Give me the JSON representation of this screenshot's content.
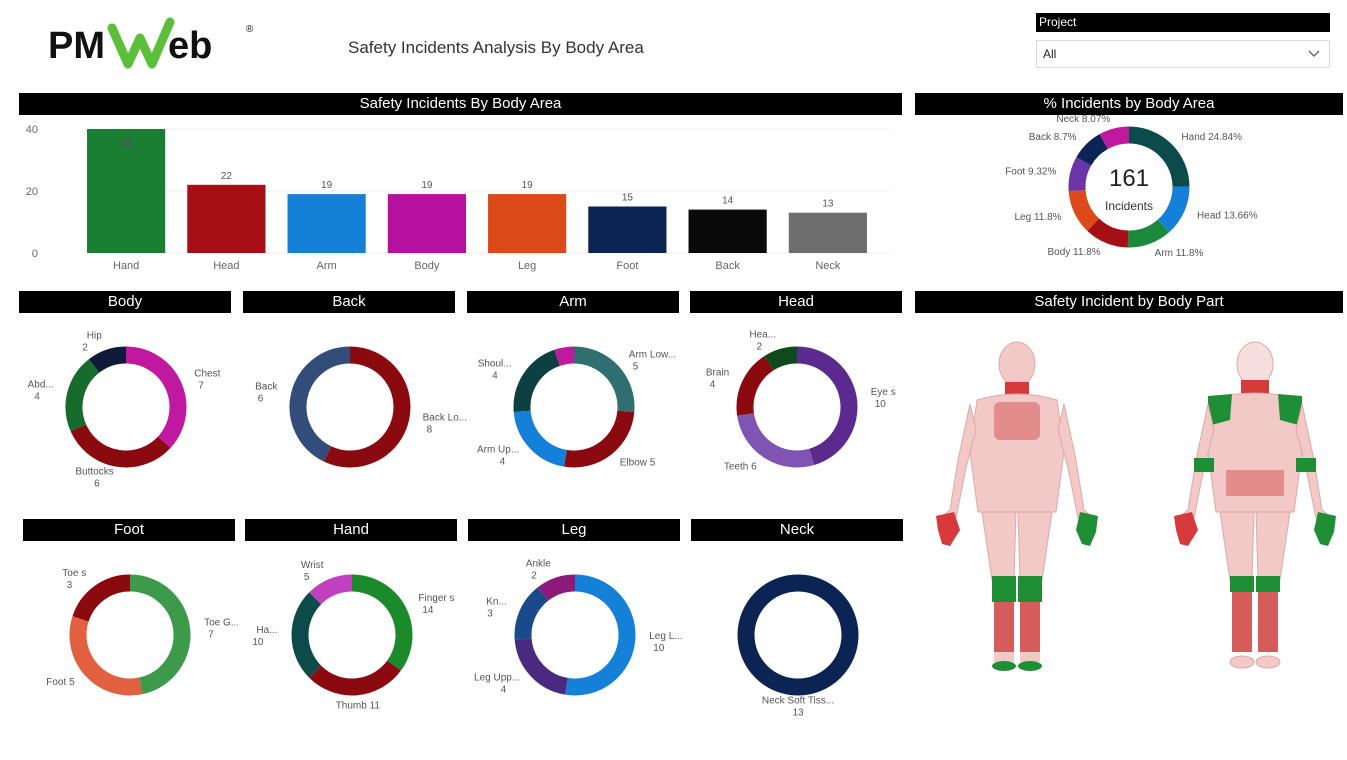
{
  "header": {
    "title": "Safety Incidents Analysis By Body Area",
    "logo": {
      "brand": "PMWeb",
      "mark": "®"
    }
  },
  "project_filter": {
    "label": "Project",
    "value": "All"
  },
  "panels": {
    "bar_title": "Safety Incidents By Body Area",
    "pct_title": "% Incidents by Body Area",
    "bodypart_title": "Safety Incident by Body Part"
  },
  "colors": {
    "accent_green": "#1a7f32",
    "dark_red": "#8b0000"
  },
  "chart_data": [
    {
      "id": "bar",
      "type": "bar",
      "title": "Safety Incidents By Body Area",
      "categories": [
        "Hand",
        "Head",
        "Arm",
        "Body",
        "Leg",
        "Foot",
        "Back",
        "Neck"
      ],
      "values": [
        40,
        22,
        19,
        19,
        19,
        15,
        14,
        13
      ],
      "colors": [
        "#1a7f32",
        "#a50f15",
        "#1580d8",
        "#b5109e",
        "#dd4a1a",
        "#0c2454",
        "#0a0a0a",
        "#6e6e6e"
      ],
      "yticks": [
        "0",
        "20",
        "40"
      ],
      "ylim": [
        0,
        40
      ],
      "grid": true
    },
    {
      "id": "pct",
      "type": "pie",
      "title": "% Incidents by Body Area",
      "center_value": "161",
      "center_label": "Incidents",
      "slices": [
        {
          "label": "Hand 24.84%",
          "value": 24.84,
          "color": "#0d4a4a"
        },
        {
          "label": "Head 13.66%",
          "value": 13.66,
          "color": "#1580d8"
        },
        {
          "label": "Arm 11.8%",
          "value": 11.8,
          "color": "#1a8a3a"
        },
        {
          "label": "Body 11.8%",
          "value": 11.8,
          "color": "#a50f15"
        },
        {
          "label": "Leg 11.8%",
          "value": 11.8,
          "color": "#dd4a1a"
        },
        {
          "label": "Foot 9.32%",
          "value": 9.32,
          "color": "#6b35a8"
        },
        {
          "label": "Back 8.7%",
          "value": 8.7,
          "color": "#0c2454"
        },
        {
          "label": "Neck 8.07%",
          "value": 8.07,
          "color": "#c0189e"
        }
      ]
    },
    {
      "id": "body",
      "type": "pie",
      "title": "Body",
      "slices": [
        {
          "name": "Chest",
          "count": "7",
          "value": 7,
          "color": "#c0189e"
        },
        {
          "name": "Buttocks",
          "count": "6",
          "value": 6,
          "color": "#8b0a10"
        },
        {
          "name": "Abd...",
          "count": "4",
          "value": 4,
          "color": "#176b2c"
        },
        {
          "name": "Hip",
          "count": "2",
          "value": 2,
          "color": "#0f1a3a"
        }
      ]
    },
    {
      "id": "back",
      "type": "pie",
      "title": "Back",
      "slices": [
        {
          "name": "Back Lo...",
          "count": "8",
          "value": 8,
          "color": "#8b0a10"
        },
        {
          "name": "Back",
          "count": "6",
          "value": 6,
          "color": "#324d7a"
        }
      ]
    },
    {
      "id": "arm",
      "type": "pie",
      "title": "Arm",
      "slices": [
        {
          "name": "Arm Low...",
          "count": "5",
          "value": 5,
          "color": "#2f6f6f"
        },
        {
          "name": "Elbow",
          "count": "5",
          "value": 5,
          "color": "#8b0a10"
        },
        {
          "name": "Arm Up...",
          "count": "4",
          "value": 4,
          "color": "#1580d8"
        },
        {
          "name": "Shoul...",
          "count": "4",
          "value": 4,
          "color": "#0d4040"
        },
        {
          "name": "",
          "count": "",
          "value": 1,
          "color": "#c0189e"
        }
      ]
    },
    {
      "id": "head",
      "type": "pie",
      "title": "Head",
      "slices": [
        {
          "name": "Eye s",
          "count": "10",
          "value": 10,
          "color": "#5b2a8f"
        },
        {
          "name": "Teeth",
          "count": "6",
          "value": 6,
          "color": "#7e55b3"
        },
        {
          "name": "Brain",
          "count": "4",
          "value": 4,
          "color": "#8b0a10"
        },
        {
          "name": "Hea...",
          "count": "2",
          "value": 2,
          "color": "#0f4a1a"
        }
      ]
    },
    {
      "id": "foot",
      "type": "pie",
      "title": "Foot",
      "slices": [
        {
          "name": "Toe G...",
          "count": "7",
          "value": 7,
          "color": "#3d9a4a"
        },
        {
          "name": "Foot",
          "count": "5",
          "value": 5,
          "color": "#e06040"
        },
        {
          "name": "Toe s",
          "count": "3",
          "value": 3,
          "color": "#8b0a10"
        }
      ]
    },
    {
      "id": "hand",
      "type": "pie",
      "title": "Hand",
      "slices": [
        {
          "name": "Finger s",
          "count": "14",
          "value": 14,
          "color": "#1a8a2a"
        },
        {
          "name": "Thumb",
          "count": "11",
          "value": 11,
          "color": "#8b0a10"
        },
        {
          "name": "Ha...",
          "count": "10",
          "value": 10,
          "color": "#0d4a4a"
        },
        {
          "name": "Wrist",
          "count": "5",
          "value": 5,
          "color": "#c040c0"
        }
      ]
    },
    {
      "id": "leg",
      "type": "pie",
      "title": "Leg",
      "slices": [
        {
          "name": "Leg L...",
          "count": "10",
          "value": 10,
          "color": "#1580d8"
        },
        {
          "name": "Leg Upp...",
          "count": "4",
          "value": 4,
          "color": "#4a2a80"
        },
        {
          "name": "Kn...",
          "count": "3",
          "value": 3,
          "color": "#1a4a8a"
        },
        {
          "name": "Ankle",
          "count": "2",
          "value": 2,
          "color": "#8b1a7a"
        }
      ]
    },
    {
      "id": "neck",
      "type": "pie",
      "title": "Neck",
      "slices": [
        {
          "name": "Neck Soft Tiss...",
          "count": "13",
          "value": 13,
          "color": "#0c2454"
        }
      ]
    }
  ]
}
